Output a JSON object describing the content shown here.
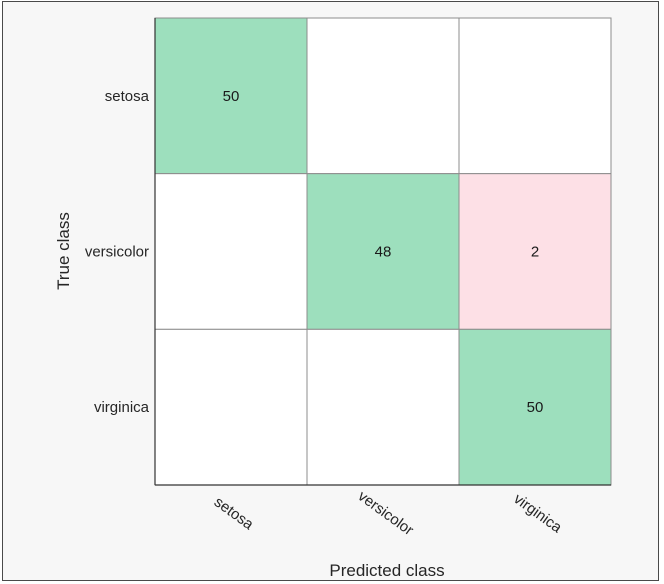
{
  "chart_data": {
    "type": "heatmap",
    "title": "",
    "xlabel": "Predicted class",
    "ylabel": "True class",
    "true_classes": [
      "setosa",
      "versicolor",
      "virginica"
    ],
    "predicted_classes": [
      "setosa",
      "versicolor",
      "virginica"
    ],
    "matrix": [
      [
        50,
        0,
        0
      ],
      [
        0,
        48,
        2
      ],
      [
        0,
        0,
        50
      ]
    ],
    "colors": {
      "correct": "#9ddfbd",
      "incorrect": "#fde0e6",
      "empty": "#ffffff",
      "grid": "#8c8c8c",
      "axis": "#333333",
      "background": "#f7f7f7"
    }
  }
}
